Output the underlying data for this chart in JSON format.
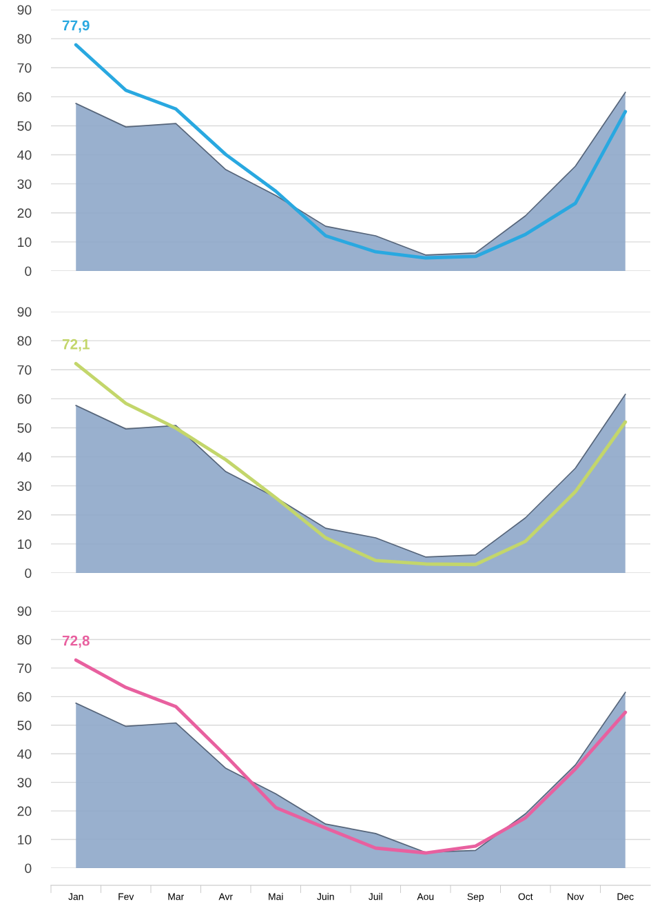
{
  "chart_data": [
    {
      "type": "line",
      "categories": [
        null,
        null,
        null,
        null,
        null,
        null,
        null,
        null,
        null,
        null,
        null,
        null
      ],
      "ylim": [
        0,
        90
      ],
      "yticks": [
        0,
        10,
        20,
        30,
        40,
        50,
        60,
        70,
        80,
        90
      ],
      "grid": "y",
      "tick_labels": "y",
      "marker": "none",
      "line_style": "solid",
      "series": [
        {
          "type": "area",
          "color": "#8ea7c9",
          "values": [
            57.7,
            49.6,
            50.8,
            34.9,
            26,
            15.4,
            12.1,
            5.5,
            6.2,
            19,
            36.1,
            61.5
          ]
        },
        {
          "color": "#29a8e0",
          "values": [
            77.9,
            62.2,
            55.8,
            40.1,
            27.5,
            12.1,
            6.6,
            4.5,
            5,
            12.6,
            23.3,
            54.9
          ],
          "value_labels": [
            "77,9",
            null,
            null,
            null,
            null,
            null,
            null,
            null,
            null,
            null,
            null,
            null
          ]
        }
      ]
    },
    {
      "type": "line",
      "categories": [
        null,
        null,
        null,
        null,
        null,
        null,
        null,
        null,
        null,
        null,
        null,
        null
      ],
      "ylim": [
        0,
        90
      ],
      "yticks": [
        0,
        10,
        20,
        30,
        40,
        50,
        60,
        70,
        80,
        90
      ],
      "grid": "y",
      "tick_labels": "y",
      "marker": "none",
      "line_style": "solid",
      "series": [
        {
          "type": "area",
          "color": "#8ea7c9",
          "values": [
            57.7,
            49.6,
            50.8,
            34.9,
            26,
            15.4,
            12.1,
            5.5,
            6.2,
            19,
            36.1,
            61.5
          ]
        },
        {
          "color": "#c3d66b",
          "values": [
            72.1,
            58.4,
            49.9,
            39,
            25.9,
            12.1,
            4.3,
            3.1,
            2.9,
            10.9,
            28,
            52
          ],
          "value_labels": [
            "72,1",
            null,
            null,
            null,
            null,
            null,
            null,
            null,
            null,
            null,
            null,
            null
          ]
        }
      ]
    },
    {
      "type": "line",
      "categories": [
        "Jan",
        "Fev",
        "Mar",
        "Avr",
        "Mai",
        "Juin",
        "Juil",
        "Aou",
        "Sep",
        "Oct",
        "Nov",
        "Dec"
      ],
      "ylim": [
        0,
        90
      ],
      "yticks": [
        0,
        10,
        20,
        30,
        40,
        50,
        60,
        70,
        80,
        90
      ],
      "grid": "y",
      "marker": "none",
      "line_style": "solid",
      "series": [
        {
          "type": "area",
          "color": "#8ea7c9",
          "values": [
            57.7,
            49.6,
            50.8,
            34.9,
            26,
            15.4,
            12.1,
            5.5,
            6.2,
            19,
            36.1,
            61.5
          ]
        },
        {
          "color": "#e8609f",
          "values": [
            72.8,
            63.2,
            56.5,
            39.3,
            21.2,
            14,
            7,
            5.3,
            7.7,
            17.6,
            34.7,
            54.5
          ],
          "value_labels": [
            "72,8",
            null,
            null,
            null,
            null,
            null,
            null,
            null,
            null,
            null,
            null,
            null
          ]
        }
      ]
    }
  ]
}
